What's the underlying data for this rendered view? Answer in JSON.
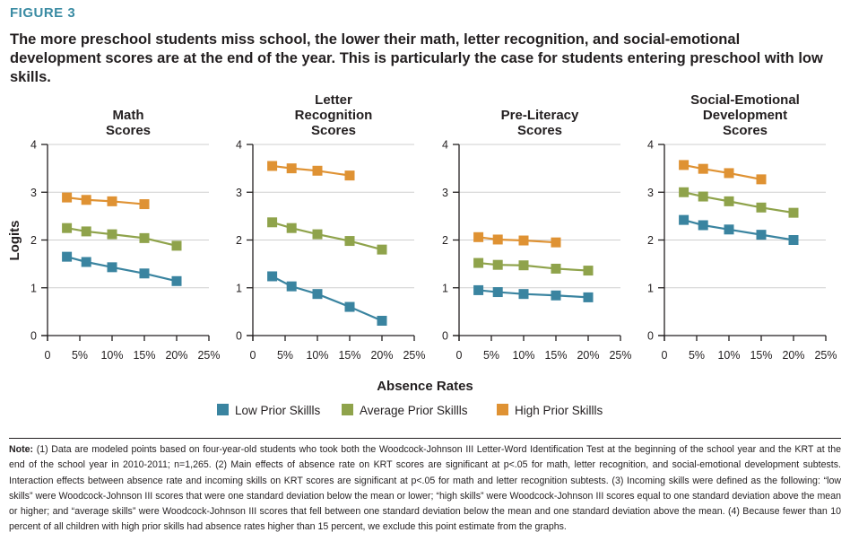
{
  "figure": {
    "label": "FIGURE 3",
    "title": "The more preschool students miss school, the lower their math, letter recognition, and social-emotional development scores are at the end of the year. This is particularly the case for students entering preschool with low skills."
  },
  "note": {
    "lead": "Note:",
    "text": " (1) Data are modeled points based on four-year-old students who took both the Woodcock-Johnson III Letter-Word Identification Test at the beginning of the school year and the KRT at the end of the school year in 2010-2011; n=1,265. (2) Main effects of absence rate on KRT scores are significant at p<.05 for math, letter recognition, and social-emotional development subtests. Interaction effects between absence rate and incoming skills on KRT scores are significant at p<.05 for math and letter recognition subtests. (3) Incoming skills were defined as the following: “low skills” were Woodcock-Johnson III scores that were one standard deviation below the mean or lower; “high skills” were Woodcock-Johnson III scores equal to one standard deviation above the mean or higher; and “average skills” were Woodcock-Johnson III scores that fell between one standard deviation below the mean and one standard deviation above the mean. (4) Because fewer than 10 percent of all children with high prior skills had absence rates higher than 15 percent, we exclude this point estimate from the graphs."
  },
  "chart_data": {
    "type": "line",
    "xlabel": "Absence Rates",
    "ylabel": "Logits",
    "xlim": [
      0,
      25
    ],
    "ylim": [
      0,
      4
    ],
    "x_ticks": [
      "0",
      "5%",
      "10%",
      "15%",
      "20%",
      "25%"
    ],
    "y_ticks": [
      "0",
      "1",
      "2",
      "3",
      "4"
    ],
    "grid": true,
    "legend_position": "bottom",
    "legend": [
      {
        "name": "Low Prior Skillls",
        "color": "#3a84a0"
      },
      {
        "name": "Average Prior Skillls",
        "color": "#8fa34b"
      },
      {
        "name": "High Prior Skillls",
        "color": "#df9233"
      }
    ],
    "panels": [
      {
        "title": [
          "Math",
          "Scores"
        ],
        "series": [
          {
            "name": "Low Prior Skillls",
            "x": [
              3,
              6,
              10,
              15,
              20
            ],
            "y": [
              1.65,
              1.54,
              1.43,
              1.3,
              1.14
            ]
          },
          {
            "name": "Average Prior Skillls",
            "x": [
              3,
              6,
              10,
              15,
              20
            ],
            "y": [
              2.25,
              2.18,
              2.12,
              2.04,
              1.88
            ]
          },
          {
            "name": "High Prior Skillls",
            "x": [
              3,
              6,
              10,
              15
            ],
            "y": [
              2.89,
              2.84,
              2.81,
              2.75
            ]
          }
        ]
      },
      {
        "title": [
          "Letter",
          "Recognition",
          "Scores"
        ],
        "series": [
          {
            "name": "Low Prior Skillls",
            "x": [
              3,
              6,
              10,
              15,
              20
            ],
            "y": [
              1.24,
              1.03,
              0.87,
              0.6,
              0.31
            ]
          },
          {
            "name": "Average Prior Skillls",
            "x": [
              3,
              6,
              10,
              15,
              20
            ],
            "y": [
              2.37,
              2.25,
              2.12,
              1.98,
              1.8
            ]
          },
          {
            "name": "High Prior Skillls",
            "x": [
              3,
              6,
              10,
              15
            ],
            "y": [
              3.55,
              3.5,
              3.45,
              3.35
            ]
          }
        ]
      },
      {
        "title": [
          "Pre-Literacy",
          "Scores"
        ],
        "series": [
          {
            "name": "Low Prior Skillls",
            "x": [
              3,
              6,
              10,
              15,
              20
            ],
            "y": [
              0.95,
              0.91,
              0.87,
              0.84,
              0.8
            ]
          },
          {
            "name": "Average Prior Skillls",
            "x": [
              3,
              6,
              10,
              15,
              20
            ],
            "y": [
              1.52,
              1.48,
              1.47,
              1.4,
              1.36
            ]
          },
          {
            "name": "High Prior Skillls",
            "x": [
              3,
              6,
              10,
              15
            ],
            "y": [
              2.06,
              2.01,
              1.99,
              1.95
            ]
          }
        ]
      },
      {
        "title": [
          "Social-Emotional",
          "Development",
          "Scores"
        ],
        "series": [
          {
            "name": "Low Prior Skillls",
            "x": [
              3,
              6,
              10,
              15,
              20
            ],
            "y": [
              2.42,
              2.31,
              2.22,
              2.11,
              2.0
            ]
          },
          {
            "name": "Average Prior Skillls",
            "x": [
              3,
              6,
              10,
              15,
              20
            ],
            "y": [
              3.0,
              2.91,
              2.81,
              2.68,
              2.57
            ]
          },
          {
            "name": "High Prior Skillls",
            "x": [
              3,
              6,
              10,
              15
            ],
            "y": [
              3.57,
              3.49,
              3.4,
              3.27
            ]
          }
        ]
      }
    ]
  }
}
